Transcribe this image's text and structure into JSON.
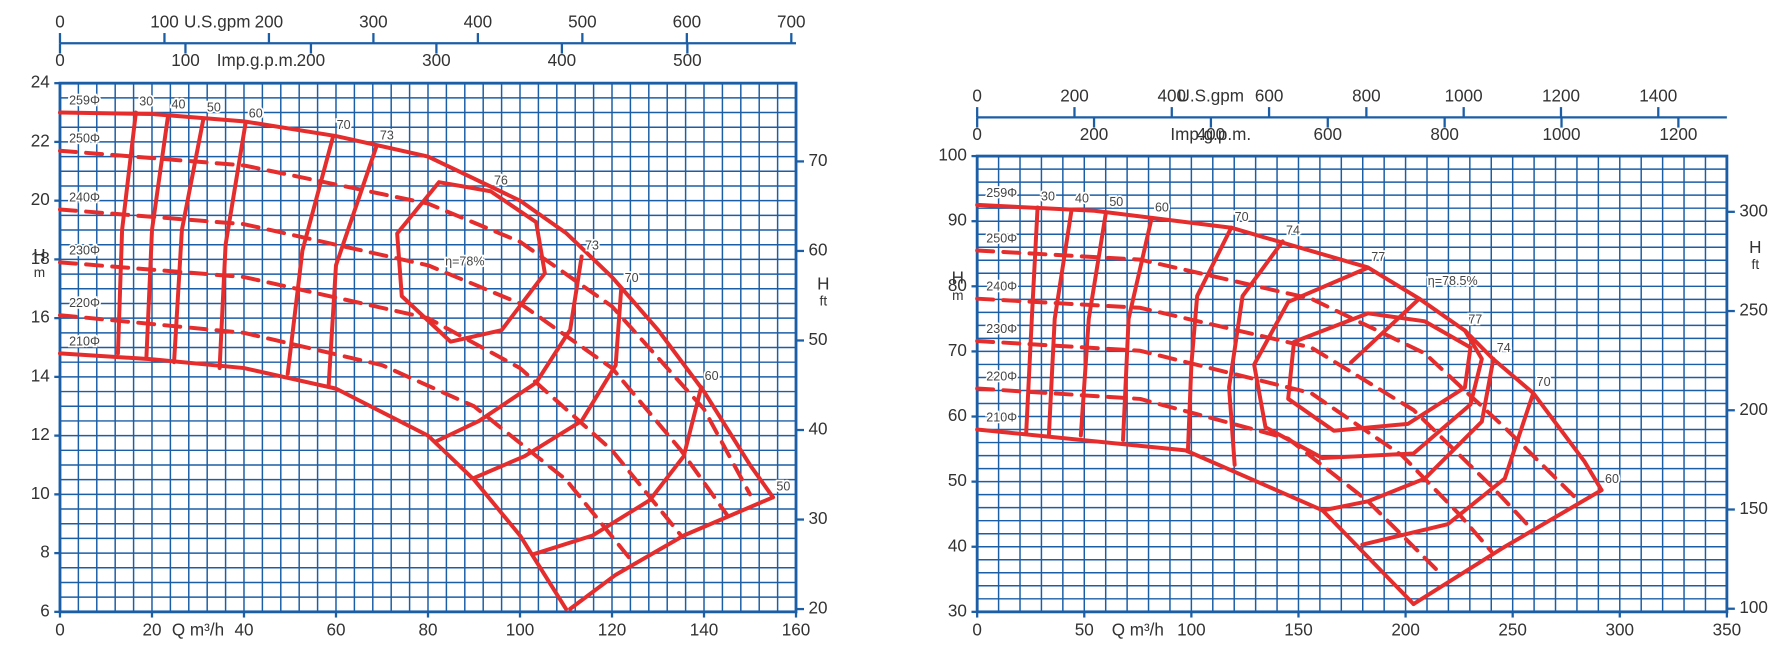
{
  "chart_data": [
    {
      "type": "line",
      "xlabel": "Q m³/h",
      "ylabel": {
        "symbol": "H",
        "unit": "m"
      },
      "y2label": {
        "symbol": "H",
        "unit": "ft"
      },
      "xlim": [
        0,
        160
      ],
      "xticks": [
        0,
        20,
        40,
        60,
        80,
        100,
        120,
        140,
        160
      ],
      "ylim": [
        6,
        24
      ],
      "yticks": [
        6,
        8,
        10,
        12,
        14,
        16,
        18,
        20,
        22,
        24
      ],
      "y2lim": [
        19.69,
        78.74
      ],
      "y2ticks": [
        20,
        30,
        40,
        50,
        60,
        70
      ],
      "top_axes": [
        {
          "label": "U.S.gpm",
          "lim": [
            0,
            704.5
          ],
          "ticks": [
            0,
            100,
            200,
            300,
            400,
            500,
            600,
            700
          ]
        },
        {
          "label": "Imp.g.p.m.",
          "lim": [
            0,
            586.6
          ],
          "ticks": [
            0,
            100,
            200,
            300,
            400,
            500
          ]
        }
      ],
      "xgrid": [
        0,
        4,
        8,
        12,
        16,
        20,
        24,
        28,
        32,
        36,
        40,
        44,
        48,
        52,
        56,
        60,
        64,
        68,
        72,
        76,
        80,
        84,
        88,
        92,
        96,
        100,
        104,
        108,
        112,
        116,
        120,
        124,
        128,
        132,
        136,
        140,
        144,
        148,
        152,
        156,
        160
      ],
      "ygrid": [
        6,
        6.5,
        7,
        7.5,
        8,
        8.5,
        9,
        9.5,
        10,
        10.5,
        11,
        11.5,
        12,
        12.5,
        13,
        13.5,
        14,
        14.5,
        15,
        15.5,
        16,
        16.5,
        17,
        17.5,
        18,
        18.5,
        19,
        19.5,
        20,
        20.5,
        21,
        21.5,
        22,
        22.5,
        23,
        23.5,
        24
      ],
      "grid_color": "#1b5ea6",
      "curve_color": "#e52d2d",
      "series": [
        {
          "name": "259Φ",
          "kind": "diameter",
          "dashed": false,
          "x": [
            0,
            20,
            40,
            60,
            80,
            100,
            110,
            120,
            130,
            140,
            150,
            155
          ],
          "values": [
            23,
            22.95,
            22.7,
            22.2,
            21.5,
            20,
            18.9,
            17.4,
            15.6,
            13.5,
            11,
            9.9
          ]
        },
        {
          "name": "250Φ",
          "kind": "diameter",
          "dashed": true,
          "x": [
            0,
            40,
            80,
            100,
            120,
            140,
            150
          ],
          "values": [
            21.7,
            21.2,
            19.9,
            18.6,
            16.4,
            12.9,
            10.0
          ]
        },
        {
          "name": "240Φ",
          "kind": "diameter",
          "dashed": true,
          "x": [
            0,
            40,
            80,
            100,
            120,
            135,
            145
          ],
          "values": [
            19.7,
            19.2,
            17.8,
            16.5,
            14.3,
            11.5,
            9.3
          ]
        },
        {
          "name": "230Φ",
          "kind": "diameter",
          "dashed": true,
          "x": [
            0,
            40,
            80,
            100,
            120,
            135
          ],
          "values": [
            17.9,
            17.4,
            16,
            14.3,
            11.5,
            8.6
          ]
        },
        {
          "name": "220Φ",
          "kind": "diameter",
          "dashed": true,
          "x": [
            0,
            40,
            70,
            90,
            110,
            125
          ],
          "values": [
            16.1,
            15.5,
            14.4,
            13,
            10.5,
            7.6
          ]
        },
        {
          "name": "210Φ",
          "kind": "diameter",
          "dashed": false,
          "x": [
            0,
            20,
            40,
            60,
            80,
            90,
            100,
            110
          ],
          "values": [
            14.8,
            14.6,
            14.3,
            13.6,
            12,
            10.5,
            8.6,
            6.1
          ]
        },
        {
          "name": "30",
          "kind": "efficiency",
          "x": [
            16.5,
            13.5,
            12.6
          ],
          "values": [
            23,
            19,
            14.8
          ]
        },
        {
          "name": "40",
          "kind": "efficiency",
          "x": [
            23.5,
            20,
            18.8
          ],
          "values": [
            22.9,
            19,
            14.7
          ]
        },
        {
          "name": "50",
          "kind": "efficiency",
          "x": [
            31.2,
            26.5,
            24.8
          ],
          "values": [
            22.8,
            19,
            14.5
          ]
        },
        {
          "name": "60",
          "kind": "efficiency",
          "x": [
            40.3,
            36,
            34.7
          ],
          "values": [
            22.6,
            18.5,
            14.3
          ]
        },
        {
          "name": "70",
          "kind": "efficiency",
          "x": [
            59.4,
            52.7,
            49.5
          ],
          "values": [
            22.2,
            18.3,
            14.1
          ]
        },
        {
          "name": "73",
          "kind": "efficiency",
          "x": [
            68.8,
            60,
            58.4
          ],
          "values": [
            21.85,
            17.8,
            13.7
          ]
        },
        {
          "name": "76",
          "kind": "efficiency",
          "closed": true,
          "x": [
            93.6,
            82.4,
            73.3,
            74.3,
            84.9,
            96.0,
            105.4,
            103.5
          ],
          "values": [
            20.32,
            20.63,
            18.88,
            16.75,
            15.2,
            15.59,
            17.53,
            19.27
          ]
        },
        {
          "name": "73",
          "kind": "efficiency",
          "x": [
            113.4,
            110.9,
            103.5,
            91.1,
            81.7
          ],
          "values": [
            18.1,
            15.6,
            13.8,
            12.5,
            11.8
          ]
        },
        {
          "name": "70",
          "kind": "efficiency",
          "x": [
            122,
            120.8,
            113.4,
            101,
            89.9
          ],
          "values": [
            17.0,
            14.4,
            12.5,
            11.3,
            10.55
          ]
        },
        {
          "name": "60",
          "kind": "efficiency",
          "x": [
            139.4,
            135.6,
            128.2,
            115.8,
            102.7
          ],
          "values": [
            13.65,
            11.3,
            9.8,
            8.6,
            7.95
          ]
        },
        {
          "name": "50",
          "kind": "efficiency",
          "x": [
            155,
            135.6,
            120.8,
            110.9
          ],
          "values": [
            9.9,
            8.6,
            7.26,
            6.1
          ]
        }
      ],
      "annotations": [
        {
          "text": "η=78%",
          "x": 88,
          "y": 17.9
        }
      ]
    },
    {
      "type": "line",
      "xlabel": "Q m³/h",
      "ylabel": {
        "symbol": "H",
        "unit": "m"
      },
      "y2label": {
        "symbol": "H",
        "unit": "ft"
      },
      "xlim": [
        0,
        350
      ],
      "xticks": [
        0,
        50,
        100,
        150,
        200,
        250,
        300,
        350
      ],
      "ylim": [
        30,
        100
      ],
      "yticks": [
        30,
        40,
        50,
        60,
        70,
        80,
        90,
        100
      ],
      "y2lim": [
        98.43,
        328.08
      ],
      "y2ticks": [
        100,
        150,
        200,
        250,
        300
      ],
      "top_axes": [
        {
          "label": "U.S.gpm",
          "lim": [
            0,
            1541
          ],
          "ticks": [
            0,
            200,
            400,
            600,
            800,
            1000,
            1200,
            1400
          ]
        },
        {
          "label": "Imp.g.p.m.",
          "lim": [
            0,
            1283
          ],
          "ticks": [
            0,
            200,
            400,
            600,
            800,
            1000,
            1200
          ]
        }
      ],
      "xgrid": [
        0,
        10,
        20,
        30,
        40,
        50,
        60,
        70,
        80,
        90,
        100,
        110,
        120,
        130,
        140,
        150,
        160,
        170,
        180,
        190,
        200,
        210,
        220,
        230,
        240,
        250,
        260,
        270,
        280,
        290,
        300,
        310,
        320,
        330,
        340,
        350
      ],
      "ygrid": [
        30,
        32,
        34,
        36,
        38,
        40,
        42,
        44,
        46,
        48,
        50,
        52,
        54,
        56,
        58,
        60,
        62,
        64,
        66,
        68,
        70,
        72,
        74,
        76,
        78,
        80,
        82,
        84,
        86,
        88,
        90,
        92,
        94,
        96,
        98,
        100
      ],
      "grid_color": "#1b5ea6",
      "curve_color": "#e52d2d",
      "series": [
        {
          "name": "259Φ",
          "kind": "diameter",
          "dashed": false,
          "x": [
            0,
            54.8,
            118.6,
            182.4,
            206.4,
            227.7,
            241,
            259.6,
            283.5,
            291.5
          ],
          "values": [
            92.5,
            91.6,
            89,
            82.9,
            78.1,
            73.2,
            68.8,
            63.6,
            53.1,
            48.7
          ]
        },
        {
          "name": "250Φ",
          "kind": "diameter",
          "dashed": true,
          "x": [
            0,
            76.1,
            155.9,
            209,
            246.3,
            280.9
          ],
          "values": [
            85.5,
            84.1,
            78.1,
            69.7,
            58.3,
            47.0
          ]
        },
        {
          "name": "240Φ",
          "kind": "diameter",
          "dashed": true,
          "x": [
            0,
            76.1,
            155.9,
            203.7,
            241,
            258
          ],
          "values": [
            78.1,
            76.7,
            70.6,
            61.0,
            49,
            43
          ]
        },
        {
          "name": "230Φ",
          "kind": "diameter",
          "dashed": true,
          "x": [
            0,
            76.1,
            155.9,
            198.4,
            225,
            240
          ],
          "values": [
            71.6,
            70.1,
            63.6,
            54.0,
            45,
            39.3
          ]
        },
        {
          "name": "220Φ",
          "kind": "diameter",
          "dashed": true,
          "x": [
            0,
            76.1,
            145.2,
            182.4,
            214.4
          ],
          "values": [
            64.3,
            62.7,
            56.6,
            47.0,
            36.5
          ]
        },
        {
          "name": "210Φ",
          "kind": "diameter",
          "dashed": false,
          "x": [
            0,
            97.3,
            161.2,
            203.7
          ],
          "values": [
            58,
            54.8,
            45.6,
            31.2
          ]
        },
        {
          "name": "30",
          "kind": "efficiency",
          "x": [
            28.2,
            25.5,
            22.9
          ],
          "values": [
            92.1,
            75,
            57.6
          ]
        },
        {
          "name": "40",
          "kind": "efficiency",
          "x": [
            44.1,
            36.2,
            33.5
          ],
          "values": [
            91.8,
            75,
            57.3
          ]
        },
        {
          "name": "50",
          "kind": "efficiency",
          "x": [
            60.1,
            52.1,
            48.4
          ],
          "values": [
            91.3,
            75,
            57.1
          ]
        },
        {
          "name": "60",
          "kind": "efficiency",
          "x": [
            81.4,
            70.7,
            68.1
          ],
          "values": [
            90.4,
            75,
            56.4
          ]
        },
        {
          "name": "70",
          "kind": "efficiency",
          "x": [
            118.6,
            102.7,
            100,
            98.4
          ],
          "values": [
            89,
            78.5,
            68,
            54.8
          ]
        },
        {
          "name": "74",
          "kind": "efficiency",
          "x": [
            142.6,
            123.9,
            117.6,
            120.2
          ],
          "values": [
            86.9,
            78.5,
            64.5,
            52.6
          ]
        },
        {
          "name": "77",
          "kind": "efficiency",
          "x": [
            182.4,
            145.2,
            129.3,
            134.6,
            161.2
          ],
          "values": [
            82.85,
            77.6,
            67.97,
            58.35,
            53.62
          ]
        },
        {
          "kind": "efficiency",
          "closed": true,
          "x": [
            182.4,
            147.9,
            145.2,
            166.5,
            201.1,
            227.7,
            230.3,
            209.0
          ],
          "values": [
            75.85,
            71.47,
            62.72,
            57.82,
            58.87,
            64.47,
            70.6,
            74.62
          ]
        },
        {
          "kind": "efficiency",
          "x": [
            206.4,
            174.5
          ],
          "values": [
            78.1,
            68.3
          ]
        },
        {
          "name": "77",
          "kind": "efficiency",
          "x": [
            227.7,
            235.6,
            230.3,
            203.7,
            161.2
          ],
          "values": [
            73.22,
            68.85,
            61.85,
            54.32,
            53.62
          ]
        },
        {
          "name": "74",
          "kind": "efficiency",
          "x": [
            241,
            235.6,
            209,
            182.4,
            161.2
          ],
          "values": [
            68.85,
            59.22,
            50.47,
            46.97,
            45.57
          ]
        },
        {
          "name": "70",
          "kind": "efficiency",
          "x": [
            259.6,
            246.3,
            219.7,
            179.8
          ],
          "values": [
            63.6,
            50.47,
            43.47,
            40.32
          ]
        },
        {
          "name": "60",
          "kind": "efficiency",
          "x": [
            291.5,
            246.3,
            203.7
          ],
          "values": [
            48.7,
            40,
            31.2
          ]
        }
      ],
      "annotations": [
        {
          "text": "η=78.5%",
          "x": 222,
          "y": 80.7
        }
      ]
    }
  ]
}
